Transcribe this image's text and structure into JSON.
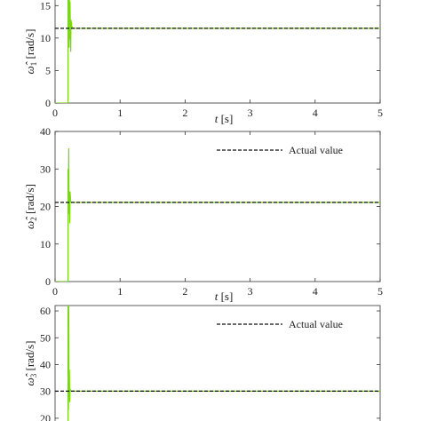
{
  "colors": {
    "estimate": "#7ed321",
    "actual": "#111111",
    "axis": "#333333"
  },
  "chart_data": [
    {
      "type": "line",
      "xlabel_var": "t",
      "xlabel_unit": "[s]",
      "ylabel_var": "ω̂",
      "ylabel_sub": "1",
      "ylabel_unit": "[rad/s]",
      "xlim": [
        0,
        5
      ],
      "ylim": [
        0,
        17.5
      ],
      "xticks": [
        0,
        1,
        2,
        3,
        4,
        5
      ],
      "yticks": [
        0,
        5,
        10,
        15
      ],
      "legend": null,
      "series": [
        {
          "role": "estimate",
          "x": [
            0,
            0.2,
            0.2,
            0.205,
            0.21,
            0.215,
            0.22,
            0.225,
            0.23,
            0.24,
            0.245,
            0.26,
            0.28,
            0.32,
            5
          ],
          "y": [
            0,
            0,
            17.5,
            10.5,
            17.2,
            8.5,
            16.8,
            9.8,
            15.6,
            7.9,
            12.8,
            11.6,
            11.5,
            11.5,
            11.5
          ]
        },
        {
          "role": "actual",
          "x": [
            0,
            5
          ],
          "y": [
            11.5,
            11.5
          ]
        }
      ]
    },
    {
      "type": "line",
      "xlabel_var": "t",
      "xlabel_unit": "[s]",
      "ylabel_var": "ω̂",
      "ylabel_sub": "2",
      "ylabel_unit": "[rad/s]",
      "xlim": [
        0,
        5
      ],
      "ylim": [
        0,
        40
      ],
      "xticks": [
        0,
        1,
        2,
        3,
        4,
        5
      ],
      "yticks": [
        0,
        10,
        20,
        30,
        40
      ],
      "legend": "Actual value",
      "series": [
        {
          "role": "estimate",
          "x": [
            0,
            0.2,
            0.2,
            0.205,
            0.21,
            0.215,
            0.22,
            0.225,
            0.23,
            0.24,
            0.26,
            0.3,
            5
          ],
          "y": [
            0,
            0,
            30,
            21,
            35.5,
            18,
            22,
            15.5,
            24,
            21.2,
            21.1,
            21.1,
            21.1
          ]
        },
        {
          "role": "actual",
          "x": [
            0,
            5
          ],
          "y": [
            21.1,
            21.1
          ]
        }
      ]
    },
    {
      "type": "line",
      "xlabel_var": "",
      "xlabel_unit": "",
      "ylabel_var": "ω̂",
      "ylabel_sub": "3",
      "ylabel_unit": "[rad/s]",
      "xlim": [
        0,
        5
      ],
      "ylim": [
        15,
        62
      ],
      "xticks": [],
      "yticks": [
        20,
        30,
        40,
        50,
        60
      ],
      "legend": "Actual value",
      "series": [
        {
          "role": "estimate",
          "x": [
            0.2,
            0.2,
            0.205,
            0.21,
            0.215,
            0.22,
            0.225,
            0.23,
            0.24,
            0.26,
            0.3,
            5
          ],
          "y": [
            15,
            62,
            23,
            62,
            28,
            38,
            26,
            31,
            30.2,
            30.1,
            30.1,
            30.1
          ]
        },
        {
          "role": "actual",
          "x": [
            0,
            5
          ],
          "y": [
            30.1,
            30.1
          ]
        }
      ]
    }
  ]
}
